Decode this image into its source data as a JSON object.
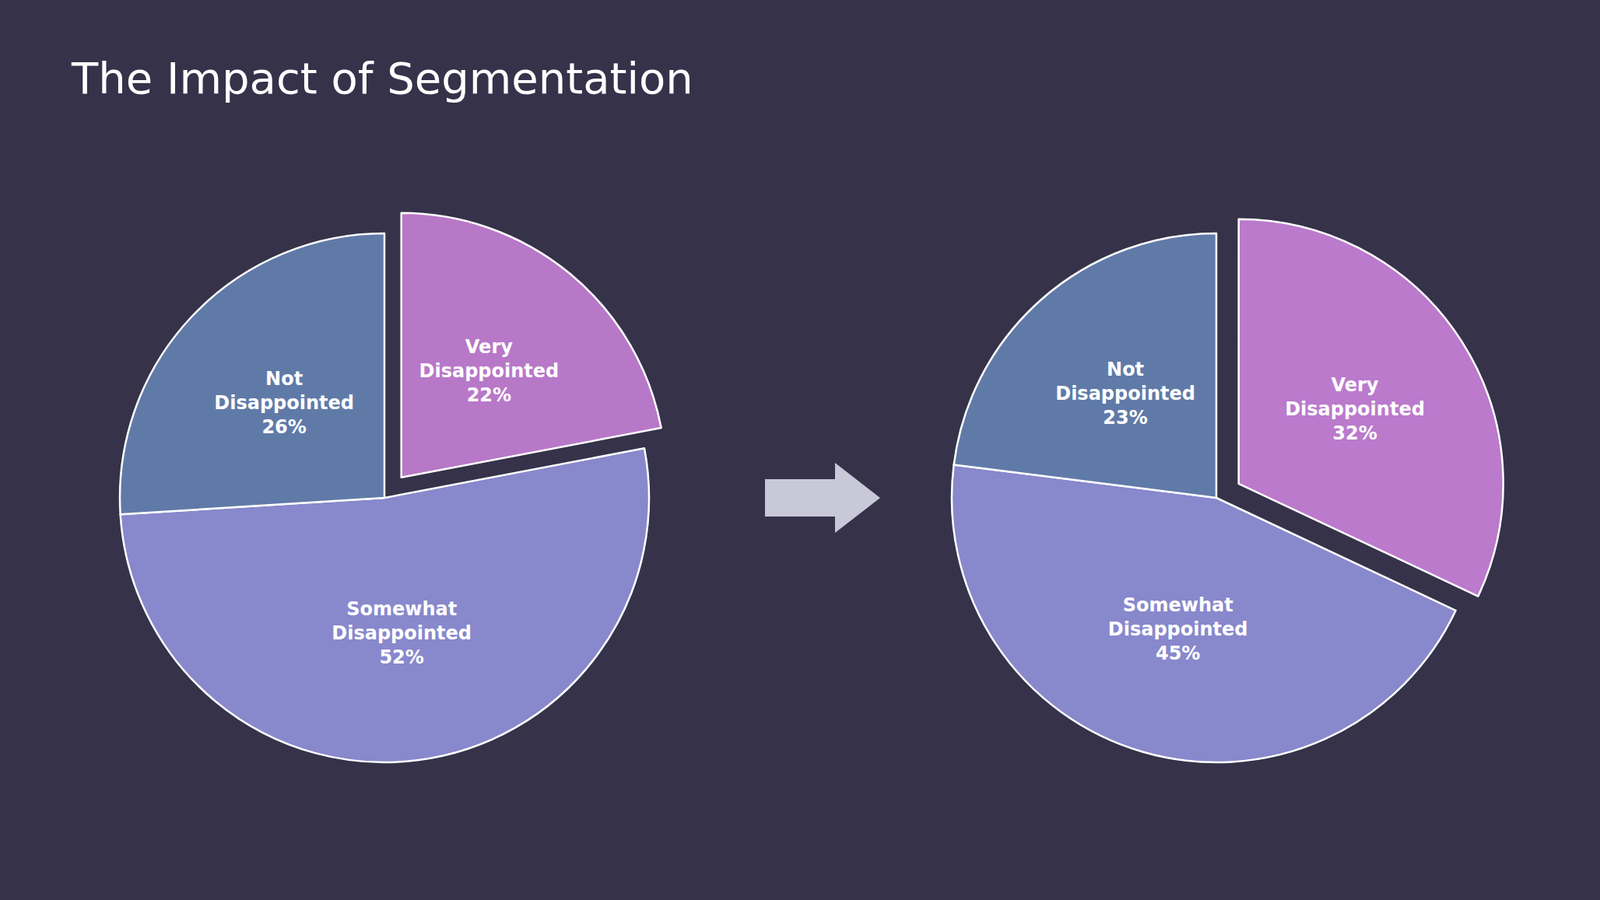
{
  "chart_data": [
    {
      "type": "pie",
      "title": "The Impact of Segmentation",
      "categories": [
        "Very\nDisappointed",
        "Somewhat\nDisappointed",
        "Not\nDisappointed"
      ],
      "values": [
        22,
        52,
        26
      ],
      "value_labels": [
        "22%",
        "52%",
        "26%"
      ],
      "colors": [
        "#b878c8",
        "#8888cc",
        "#607aa8"
      ],
      "data_labels": true
    },
    {
      "type": "pie",
      "categories": [
        "Very\nDisappointed",
        "Somewhat\nDisappointed",
        "Not\nDisappointed"
      ],
      "values": [
        32,
        45,
        23
      ],
      "value_labels": [
        "32%",
        "45%",
        "23%"
      ],
      "colors": [
        "#bb7acc",
        "#8888cc",
        "#607aa8"
      ],
      "data_labels": true
    }
  ]
}
